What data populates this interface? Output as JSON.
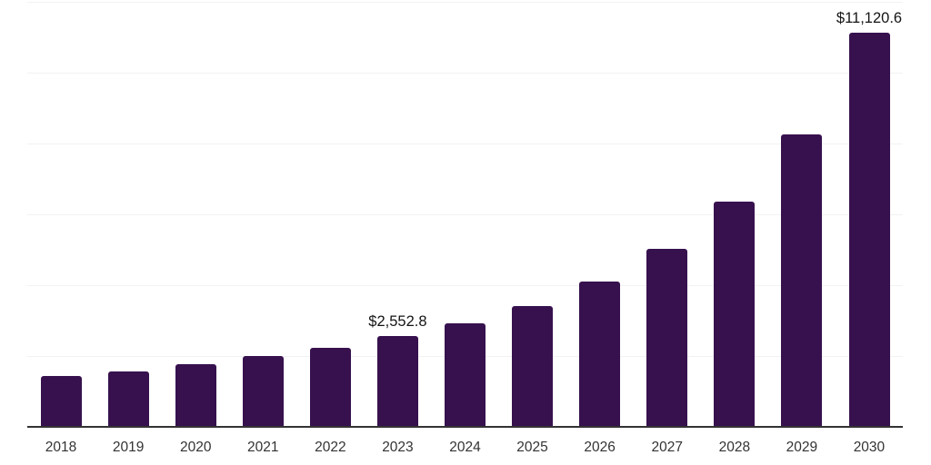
{
  "chart_data": {
    "type": "bar",
    "title": "",
    "xlabel": "",
    "ylabel": "",
    "categories": [
      "2018",
      "2019",
      "2020",
      "2021",
      "2022",
      "2023",
      "2024",
      "2025",
      "2026",
      "2027",
      "2028",
      "2029",
      "2030"
    ],
    "series": [
      {
        "name": "",
        "values": [
          1435,
          1570,
          1775,
          2005,
          2220,
          2552.8,
          2920,
          3415,
          4115,
          5035,
          6370,
          8245,
          11120.6
        ]
      }
    ],
    "value_labels": {
      "2023": "$2,552.8",
      "2030": "$11,120.6"
    },
    "ylim": [
      0,
      12000
    ],
    "gridline_step": 2000,
    "grid": "horizontal",
    "legend_position": "none",
    "y_axis_tick_labels_visible": false,
    "colors": {
      "bar": "#37114e",
      "axis_line": "#333333",
      "gridline": "#f2f2f4",
      "tick_label": "#333333",
      "value_label": "#141414",
      "background": "#ffffff"
    }
  }
}
